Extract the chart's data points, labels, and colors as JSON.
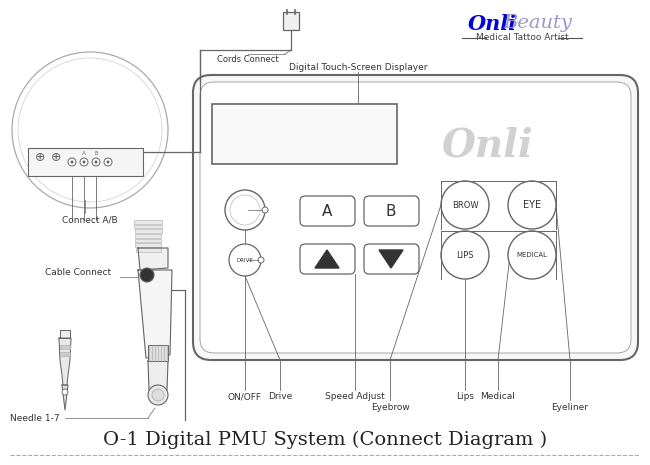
{
  "title": "O-1 Digital PMU System (Connect Diagram )",
  "title_fontsize": 14,
  "bg_color": "#ffffff",
  "line_color": "#666666",
  "text_color": "#333333",
  "brand_onli_color": "#0000dd",
  "brand_beauty_color": "#9999cc",
  "subtitle": "Medical Tattoo Artist",
  "label_cords": "Cords Connect",
  "label_display": "Digital Touch-Screen Displayer",
  "label_connect_ab": "Connect A/B",
  "label_cable": "Cable Connect",
  "label_needle": "Needle 1-7",
  "label_onoff": "ON/OFF",
  "label_drive": "Drive",
  "label_speed": "Speed Adjust",
  "label_eyebrow": "Eyebrow",
  "label_lips": "Lips",
  "label_medical": "Medical",
  "label_eyeliner": "Eyeliner",
  "btn_A": "A",
  "btn_B": "B",
  "btn_BROW": "BROW",
  "btn_EYE": "EYE",
  "btn_LIPS": "LIPS",
  "btn_MEDICAL": "MEDICAL",
  "btn_DRIVE": "DRIVE"
}
